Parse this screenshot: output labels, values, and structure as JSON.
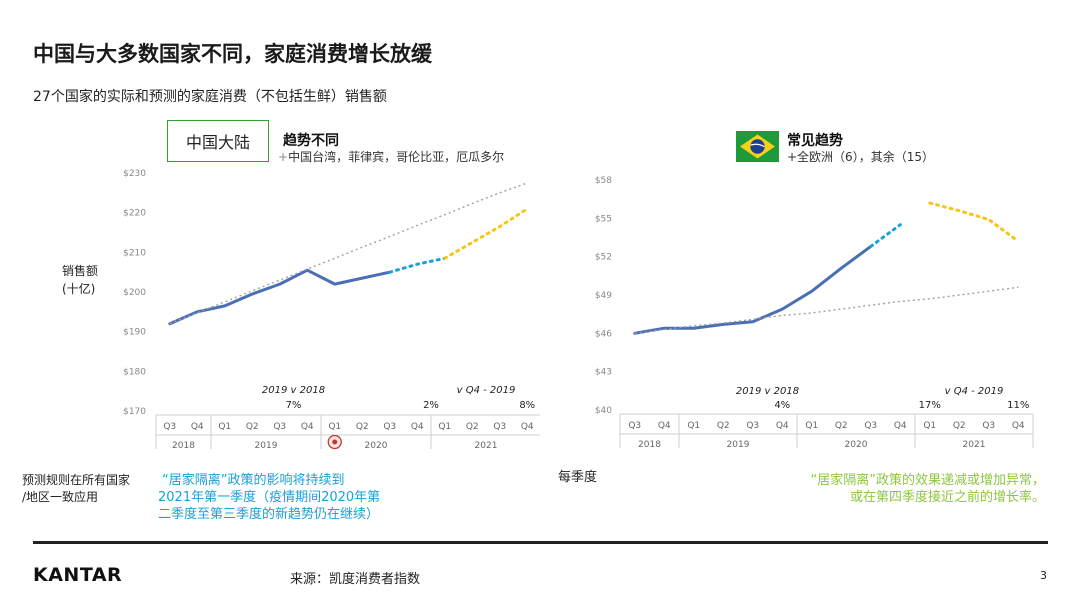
{
  "title": "中国与大多数国家不同，家庭消费增长放缓",
  "subtitle": "27个国家的实际和预测的家庭消费（不包括生鲜）销售额",
  "y_axis_label_line1": "销售额",
  "y_axis_label_line2": "(十亿)",
  "left_panel": {
    "label_box": "中国大陆",
    "trend_title": "趋势不同",
    "trend_sub_plus": "+",
    "trend_sub": "中国台湾，菲律宾，哥伦比亚，厄瓜多尔"
  },
  "right_panel": {
    "flag_icon": "brazil-flag-icon",
    "trend_title": "常见趋势",
    "trend_sub": "+全欧洲（6），其余（15）"
  },
  "notes": {
    "rule_line1": "预测规则在所有国家",
    "rule_line2": "/地区一致应用",
    "blue_line1": "“居家隔离”政策的影响将持续到",
    "blue_line2": "2021年第一季度（疫情期间2020年第",
    "blue_line3": "二季度至第三季度的新趋势仍在继续）",
    "per_quarter": "每季度",
    "green_line1": "“居家隔离”政策的效果递减或增加异常，",
    "green_line2": "或在第四季度接近之前的增长率。"
  },
  "footer": {
    "logo": "KANTAR",
    "source": "来源：凯度消费者指数",
    "page_number": "3"
  },
  "colors": {
    "actual": "#4a6fb5",
    "forecast_q4": "#1aa0d6",
    "forecast_2021": "#f5c518",
    "trend": "#a0a0a0",
    "accent_green": "#33a02c",
    "note_blue": "#1aa0d6",
    "note_green": "#8dc63f"
  },
  "chart_data": [
    {
      "type": "line",
      "categories": [
        "Q3",
        "Q4",
        "Q1",
        "Q2",
        "Q3",
        "Q4",
        "Q1",
        "Q2",
        "Q3",
        "Q4",
        "Q1",
        "Q2",
        "Q3",
        "Q4"
      ],
      "year_groups": [
        {
          "label": "2018",
          "start": 0,
          "end": 1
        },
        {
          "label": "2019",
          "start": 2,
          "end": 5
        },
        {
          "label": "2020",
          "start": 6,
          "end": 9
        },
        {
          "label": "2021",
          "start": 10,
          "end": 13
        }
      ],
      "y_ticks": [
        "$170",
        "$180",
        "$190",
        "$200",
        "$210",
        "$220",
        "$230"
      ],
      "ylim": [
        170,
        230
      ],
      "series": [
        {
          "role": "actual",
          "values": [
            192,
            195,
            196.5,
            199.5,
            202,
            205.5,
            202,
            203.5,
            205,
            null,
            null,
            null,
            null,
            null
          ]
        },
        {
          "role": "forecast_q4",
          "values": [
            null,
            null,
            null,
            null,
            null,
            null,
            null,
            null,
            205,
            207,
            208.5,
            null,
            null,
            null
          ]
        },
        {
          "role": "forecast_2021",
          "values": [
            null,
            null,
            null,
            null,
            null,
            null,
            null,
            null,
            null,
            null,
            208.5,
            212.5,
            216.5,
            221
          ]
        },
        {
          "role": "trend",
          "values": [
            192,
            194.8,
            197.5,
            200.3,
            203,
            205.8,
            208.5,
            211.3,
            214,
            216.8,
            219.5,
            222.3,
            225,
            227.5
          ]
        }
      ],
      "annotations": [
        {
          "text": "2019 v 2018",
          "style": "italic",
          "at": 4.5
        },
        {
          "text": "7%",
          "at": 4.5
        },
        {
          "text": "2%",
          "at": 9.5
        },
        {
          "text": "v Q4 - 2019",
          "style": "italic",
          "at": 11.5
        },
        {
          "text": "8%",
          "at": 13
        }
      ]
    },
    {
      "type": "line",
      "categories": [
        "Q3",
        "Q4",
        "Q1",
        "Q2",
        "Q3",
        "Q4",
        "Q1",
        "Q2",
        "Q3",
        "Q4",
        "Q1",
        "Q2",
        "Q3",
        "Q4"
      ],
      "year_groups": [
        {
          "label": "2018",
          "start": 0,
          "end": 1
        },
        {
          "label": "2019",
          "start": 2,
          "end": 5
        },
        {
          "label": "2020",
          "start": 6,
          "end": 9
        },
        {
          "label": "2021",
          "start": 10,
          "end": 13
        }
      ],
      "y_ticks": [
        "$40",
        "$43",
        "$46",
        "$49",
        "$52",
        "$55",
        "$58"
      ],
      "ylim": [
        40,
        58
      ],
      "series": [
        {
          "role": "actual",
          "values": [
            46,
            46.4,
            46.4,
            46.7,
            46.9,
            47.9,
            49.3,
            51.1,
            52.8,
            null,
            null,
            null,
            null,
            null
          ]
        },
        {
          "role": "forecast_q4",
          "values": [
            null,
            null,
            null,
            null,
            null,
            null,
            null,
            null,
            52.8,
            54.5,
            null,
            null,
            null,
            null
          ]
        },
        {
          "role": "forecast_2021",
          "values": [
            null,
            null,
            null,
            null,
            null,
            null,
            null,
            null,
            null,
            null,
            56.2,
            55.6,
            54.9,
            53.2
          ]
        },
        {
          "role": "trend",
          "values": [
            46,
            46.3,
            46.6,
            46.8,
            47.1,
            47.4,
            47.6,
            47.9,
            48.2,
            48.5,
            48.7,
            49,
            49.3,
            49.6
          ]
        }
      ],
      "annotations": [
        {
          "text": "2019 v 2018",
          "style": "italic",
          "at": 4.5
        },
        {
          "text": "4%",
          "at": 5
        },
        {
          "text": "17%",
          "at": 10
        },
        {
          "text": "v Q4 - 2019",
          "style": "italic",
          "at": 11.5
        },
        {
          "text": "11%",
          "at": 13
        }
      ]
    }
  ]
}
